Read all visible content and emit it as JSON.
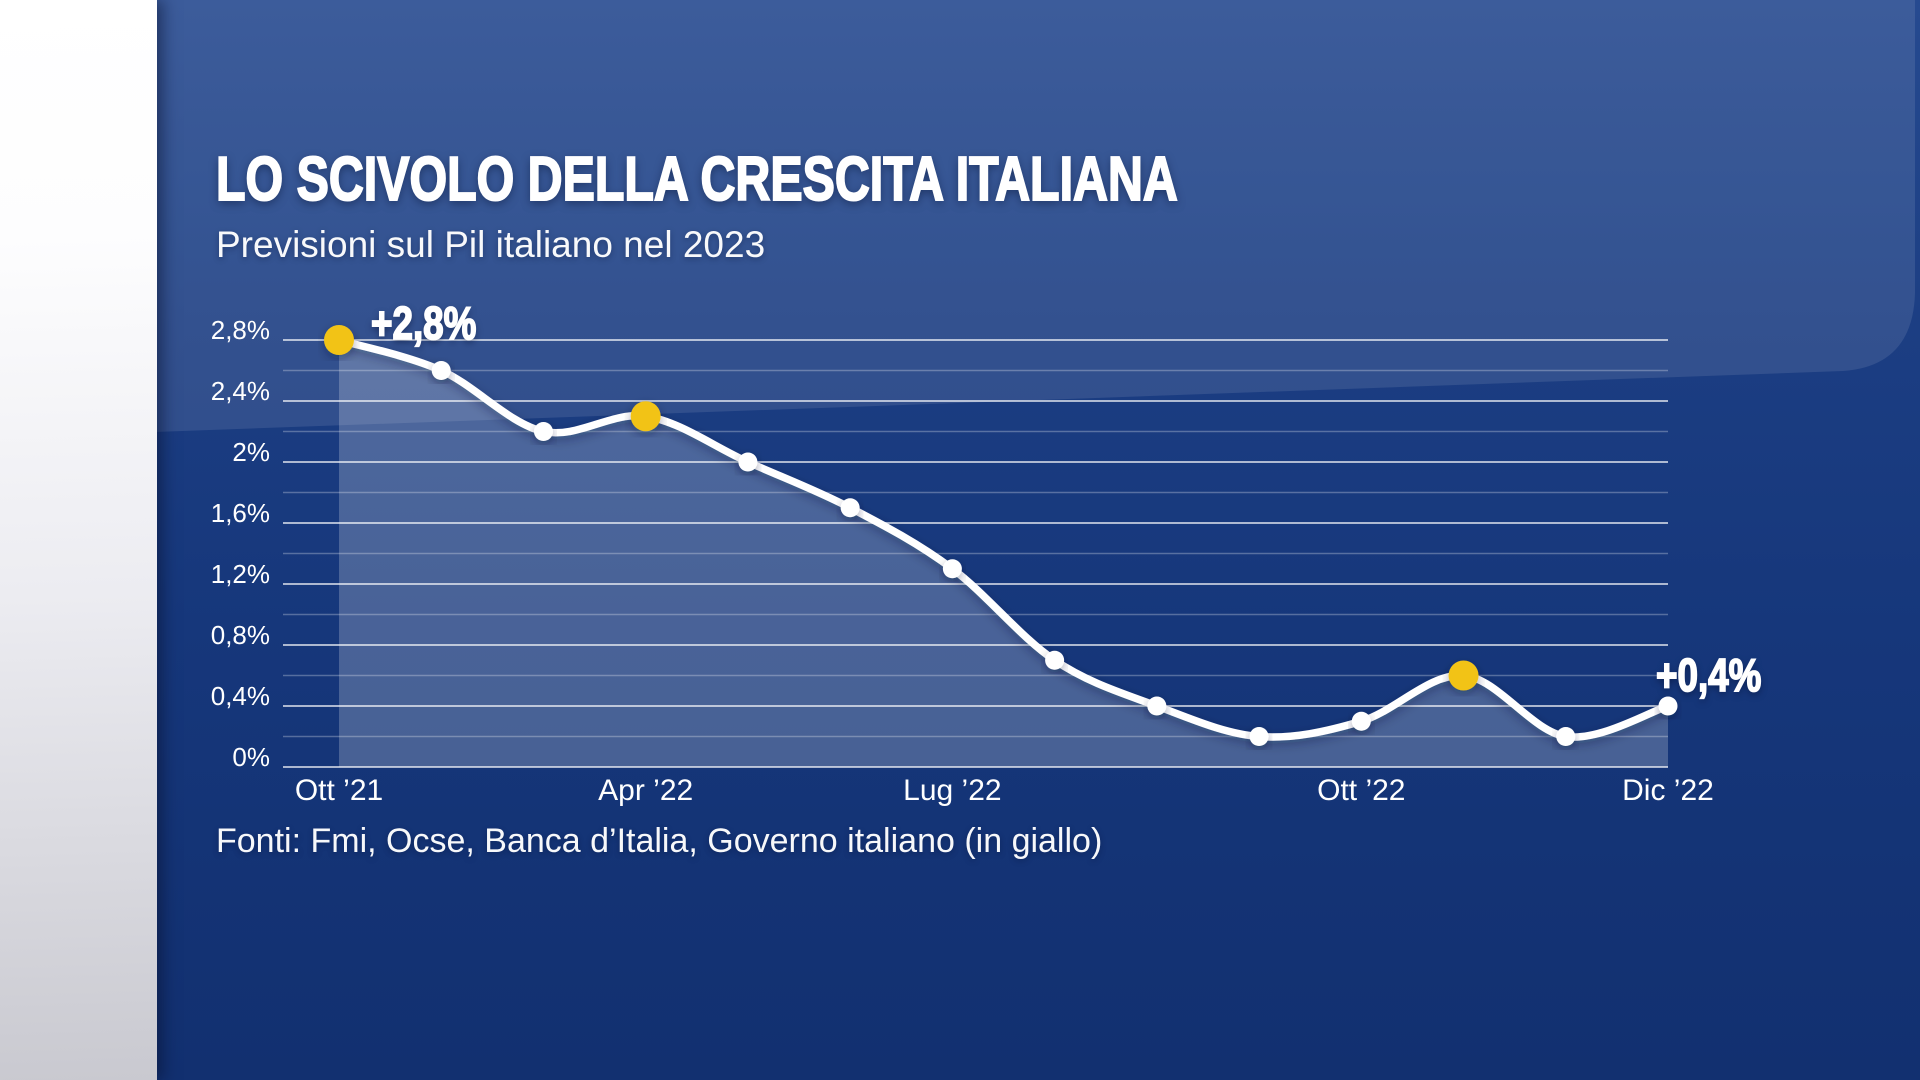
{
  "header": {
    "title": "LO SCIVOLO DELLA CRESCITA ITALIANA",
    "subtitle": "Previsioni sul Pil italiano nel 2023"
  },
  "footer": {
    "source": "Fonti: Fmi, Ocse, Banca d’Italia, Governo italiano (in giallo)"
  },
  "chart_data": {
    "type": "line",
    "title": "LO SCIVOLO DELLA CRESCITA ITALIANA",
    "subtitle": "Previsioni sul Pil italiano nel 2023",
    "source": "Fonti: Fmi, Ocse, Banca d’Italia, Governo italiano (in giallo)",
    "unit": "%",
    "ylim": [
      0,
      2.8
    ],
    "y_major_step": 0.4,
    "y_minor_step": 0.2,
    "grid": true,
    "y_tick_labels": [
      "0%",
      "0,4%",
      "0,8%",
      "1,2%",
      "1,6%",
      "2%",
      "2,4%",
      "2,8%"
    ],
    "x_tick_labels": [
      "Ott ’21",
      "Apr ’22",
      "Lug ’22",
      "Ott ’22",
      "Dic ’22"
    ],
    "x_tick_point_indices": [
      0,
      3,
      6,
      10,
      13
    ],
    "series": [
      {
        "name": "Previsioni sul Pil italiano nel 2023",
        "values": [
          2.8,
          2.6,
          2.2,
          2.3,
          2.0,
          1.7,
          1.3,
          0.7,
          0.4,
          0.2,
          0.3,
          0.6,
          0.2,
          0.4
        ]
      }
    ],
    "highlight_point_indices": [
      0,
      3,
      11
    ],
    "highlight_meaning": "Governo italiano (in giallo)",
    "annotations": [
      {
        "text": "+2,8%",
        "point_index": 0,
        "placement": "above-right"
      },
      {
        "text": "+0,4%",
        "point_index": 13,
        "placement": "above"
      }
    ],
    "colors": {
      "background": "#16377b",
      "sheen": "rgba(255,255,255,0.10)",
      "line": "#ffffff",
      "dot": "#ffffff",
      "highlight_dot": "#f2c318",
      "area_fill": "rgba(255,255,255,0.22)",
      "grid_major": "rgba(255,255,255,0.65)",
      "grid_minor": "rgba(255,255,255,0.28)",
      "text": "#ffffff"
    }
  }
}
